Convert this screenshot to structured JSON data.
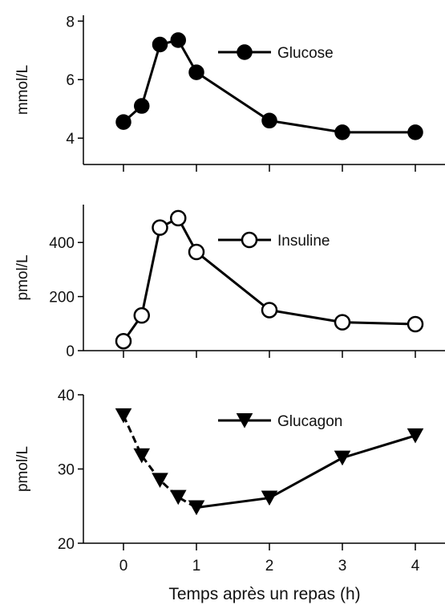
{
  "chart_data": [
    {
      "type": "line",
      "ylabel": "mmol/L",
      "ylim": [
        3.1,
        8.2
      ],
      "yticks": [
        4,
        6,
        8
      ],
      "grid": false,
      "legend": "top-right",
      "series": [
        {
          "name": "Glucose",
          "marker": "filled-circle",
          "x": [
            0,
            0.25,
            0.5,
            0.75,
            1,
            2,
            3,
            4
          ],
          "y": [
            4.55,
            5.1,
            7.2,
            7.35,
            6.25,
            4.6,
            4.2,
            4.2
          ]
        }
      ]
    },
    {
      "type": "line",
      "ylabel": "pmol/L",
      "ylim": [
        0,
        540
      ],
      "yticks": [
        0,
        200,
        400
      ],
      "grid": false,
      "legend": "top-right",
      "series": [
        {
          "name": "Insuline",
          "marker": "open-circle",
          "x": [
            0,
            0.25,
            0.5,
            0.75,
            1,
            2,
            3,
            4
          ],
          "y": [
            35,
            130,
            455,
            490,
            365,
            150,
            105,
            98
          ]
        }
      ]
    },
    {
      "type": "line",
      "ylabel": "pmol/L",
      "ylim": [
        20,
        40
      ],
      "yticks": [
        20,
        30,
        40
      ],
      "grid": false,
      "legend": "top-right",
      "series": [
        {
          "name": "Glucagon",
          "marker": "filled-triangle-down",
          "x": [
            0,
            0.25,
            0.5,
            0.75,
            1,
            2,
            3,
            4
          ],
          "y": [
            37.2,
            31.8,
            28.5,
            26.2,
            24.8,
            26.1,
            31.5,
            34.5
          ]
        }
      ]
    }
  ],
  "x_axis": {
    "label": "Temps après un repas (h)",
    "ticks": [
      0,
      1,
      2,
      3,
      4
    ],
    "xlim": [
      -0.45,
      4.4
    ]
  },
  "colors": {
    "line": "#000000",
    "marker_fill": "#000000",
    "open_marker_fill": "#ffffff"
  }
}
